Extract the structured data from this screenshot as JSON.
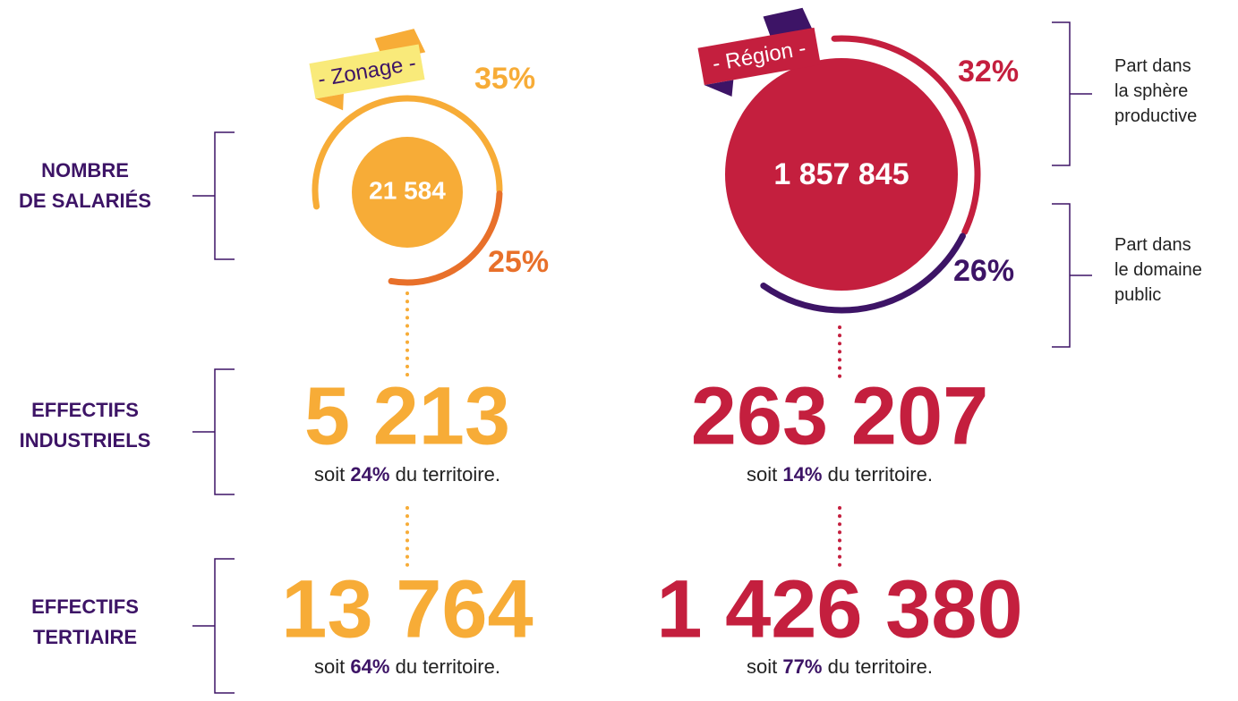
{
  "rows": [
    {
      "label": [
        "NOMBRE",
        "DE SALARIÉS"
      ]
    },
    {
      "label": [
        "EFFECTIFS",
        "INDUSTRIELS"
      ]
    },
    {
      "label": [
        "EFFECTIFS",
        "TERTIAIRE"
      ]
    }
  ],
  "zonage": {
    "tag": "- Zonage -",
    "total": "21 584",
    "share_top": "35%",
    "share_bottom": "25%",
    "industriels": {
      "value": "5 213",
      "pre": "soit",
      "pct": "24%",
      "post": "du territoire."
    },
    "tertiaire": {
      "value": "13 764",
      "pre": "soit",
      "pct": "64%",
      "post": "du territoire."
    }
  },
  "region": {
    "tag": "- Région -",
    "total": "1 857 845",
    "share_top": "32%",
    "share_bottom": "26%",
    "industriels": {
      "value": "263 207",
      "pre": "soit",
      "pct": "14%",
      "post": "du territoire."
    },
    "tertiaire": {
      "value": "1 426 380",
      "pre": "soit",
      "pct": "77%",
      "post": "du territoire."
    }
  },
  "legend": [
    {
      "lines": [
        "Part dans",
        "la sphère",
        "productive"
      ]
    },
    {
      "lines": [
        "Part dans",
        "le domaine",
        "public"
      ]
    }
  ]
}
